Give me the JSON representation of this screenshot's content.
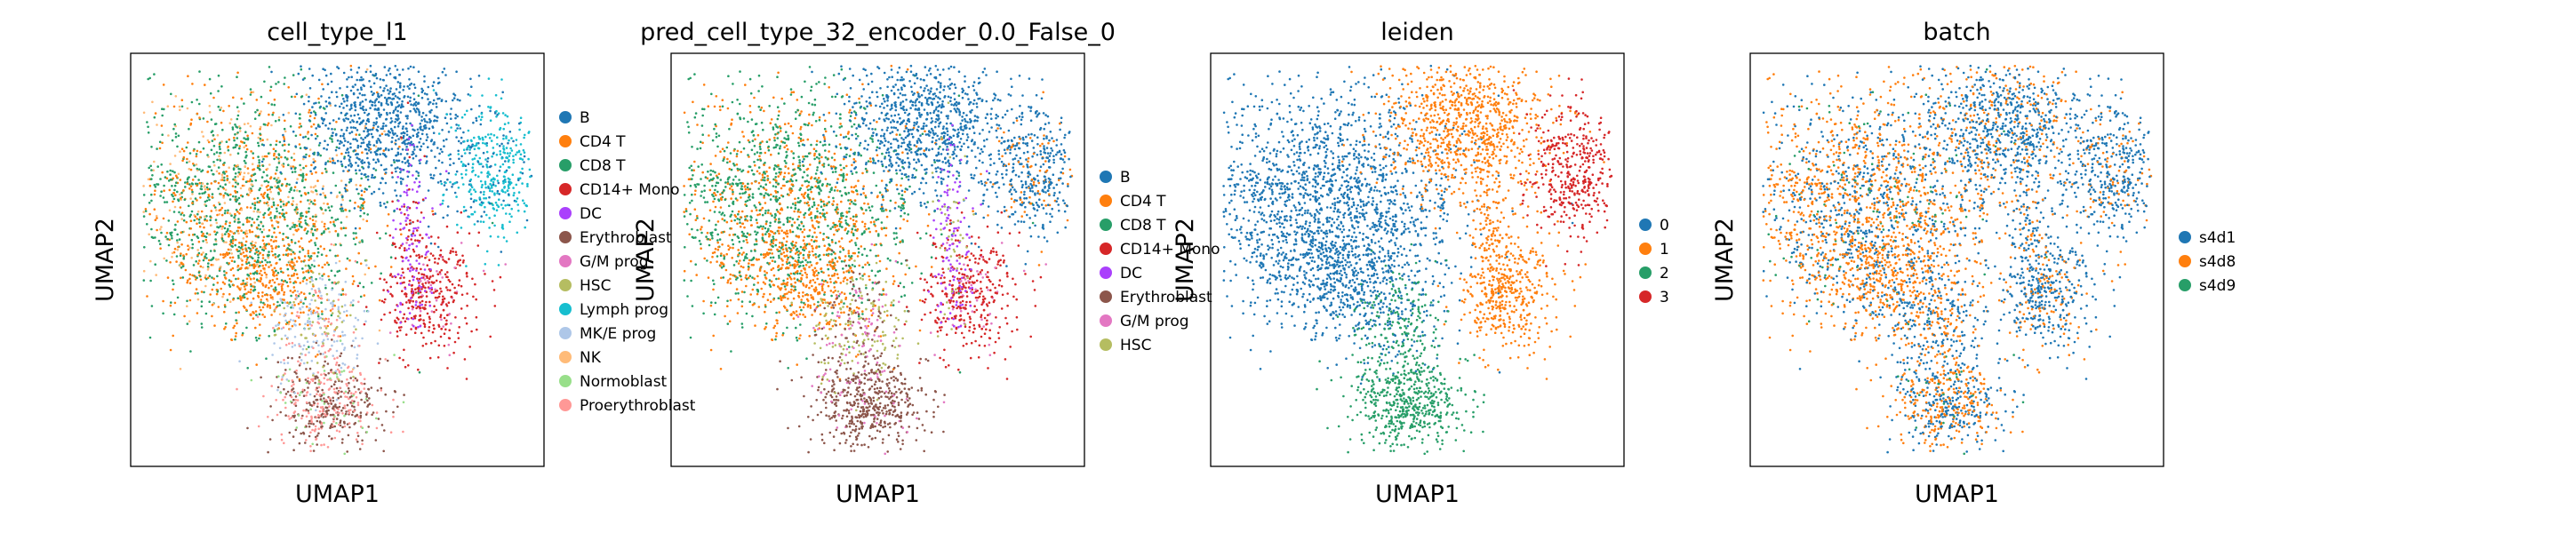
{
  "chart_data": [
    {
      "type": "scatter",
      "title": "cell_type_l1",
      "xlabel": "UMAP1",
      "ylabel": "UMAP2",
      "grid": false,
      "legend_position": "right",
      "legend_title": "",
      "series": [
        {
          "name": "B",
          "color": "#1f77b4"
        },
        {
          "name": "CD4 T",
          "color": "#ff7f0e"
        },
        {
          "name": "CD8 T",
          "color": "#279e68"
        },
        {
          "name": "CD14+ Mono",
          "color": "#d62728"
        },
        {
          "name": "DC",
          "color": "#aa40fc"
        },
        {
          "name": "Erythroblast",
          "color": "#8c564b"
        },
        {
          "name": "G/M prog",
          "color": "#e377c2"
        },
        {
          "name": "HSC",
          "color": "#b5bd61"
        },
        {
          "name": "Lymph prog",
          "color": "#17becf"
        },
        {
          "name": "MK/E prog",
          "color": "#aec7e8"
        },
        {
          "name": "NK",
          "color": "#ffbb78"
        },
        {
          "name": "Normoblast",
          "color": "#98df8a"
        },
        {
          "name": "Proerythroblast",
          "color": "#ff9896"
        }
      ]
    },
    {
      "type": "scatter",
      "title": "pred_cell_type_32_encoder_0.0_False_0",
      "xlabel": "UMAP1",
      "ylabel": "UMAP2",
      "grid": false,
      "legend_position": "right",
      "legend_title": "",
      "series": [
        {
          "name": "B",
          "color": "#1f77b4"
        },
        {
          "name": "CD4 T",
          "color": "#ff7f0e"
        },
        {
          "name": "CD8 T",
          "color": "#279e68"
        },
        {
          "name": "CD14+ Mono",
          "color": "#d62728"
        },
        {
          "name": "DC",
          "color": "#aa40fc"
        },
        {
          "name": "Erythroblast",
          "color": "#8c564b"
        },
        {
          "name": "G/M prog",
          "color": "#e377c2"
        },
        {
          "name": "HSC",
          "color": "#b5bd61"
        }
      ]
    },
    {
      "type": "scatter",
      "title": "leiden",
      "xlabel": "UMAP1",
      "ylabel": "UMAP2",
      "grid": false,
      "legend_position": "right",
      "legend_title": "",
      "series": [
        {
          "name": "0",
          "color": "#1f77b4"
        },
        {
          "name": "1",
          "color": "#ff7f0e"
        },
        {
          "name": "2",
          "color": "#279e68"
        },
        {
          "name": "3",
          "color": "#d62728"
        }
      ]
    },
    {
      "type": "scatter",
      "title": "batch",
      "xlabel": "UMAP1",
      "ylabel": "UMAP2",
      "grid": false,
      "legend_position": "right",
      "legend_title": "",
      "series": [
        {
          "name": "s4d1",
          "color": "#1f77b4"
        },
        {
          "name": "s4d8",
          "color": "#ff7f0e"
        },
        {
          "name": "s4d9",
          "color": "#279e68"
        }
      ]
    }
  ]
}
